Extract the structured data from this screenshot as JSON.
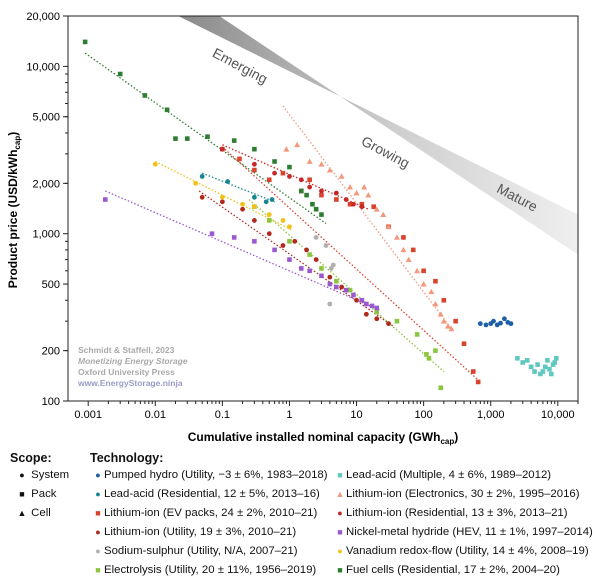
{
  "chart_data": {
    "type": "scatter",
    "xscale": "log",
    "yscale": "log",
    "xlabel": "Cumulative installed nominal capacity (GWh",
    "xlabel_sub": "cap",
    "xlabel_end": ")",
    "ylabel": "Product price (USD/kWh",
    "ylabel_sub": "cap",
    "ylabel_end": ")",
    "xlim": [
      0.0005,
      20000
    ],
    "ylim": [
      100,
      20000
    ],
    "xticks": [
      0.001,
      0.01,
      0.1,
      1,
      10,
      100,
      1000,
      10000
    ],
    "xtick_labels": [
      "0.001",
      "0.01",
      "0.1",
      "1",
      "10",
      "100",
      "1,000",
      "10,000"
    ],
    "yticks": [
      100,
      200,
      500,
      1000,
      2000,
      5000,
      10000,
      20000
    ],
    "ytick_labels": [
      "100",
      "200",
      "500",
      "1,000",
      "2,000",
      "5,000",
      "10,000",
      "20,000"
    ],
    "band_labels": [
      "Emerging",
      "Growing",
      "Mature"
    ],
    "source_lines": [
      "Schmidt & Staffell, 2023",
      "Monetizing Energy Storage",
      "Oxford University Press",
      "www.EnergyStorage.ninja"
    ],
    "series": [
      {
        "name": "Pumped hydro (Utility, −3 ± 6%, 1983–2018)",
        "color": "#1f5fa6",
        "marker": "circle",
        "points": [
          [
            700,
            290
          ],
          [
            850,
            285
          ],
          [
            1000,
            290
          ],
          [
            1100,
            300
          ],
          [
            1250,
            285
          ],
          [
            1400,
            292
          ],
          [
            1600,
            310
          ],
          [
            1800,
            295
          ],
          [
            2000,
            290
          ]
        ]
      },
      {
        "name": "Lead-acid (Residential, 12 ± 5%, 2013–16)",
        "color": "#17858f",
        "marker": "circle",
        "points": [
          [
            0.05,
            2200
          ],
          [
            0.12,
            2050
          ],
          [
            0.3,
            1650
          ],
          [
            0.45,
            1550
          ],
          [
            0.55,
            1600
          ]
        ],
        "trend": [
          [
            0.05,
            2300
          ],
          [
            0.6,
            1550
          ]
        ]
      },
      {
        "name": "Lithium-ion (EV packs, 24 ± 2%, 2010–21)",
        "color": "#d9432e",
        "marker": "square",
        "points": [
          [
            0.1,
            3200
          ],
          [
            0.18,
            2800
          ],
          [
            0.3,
            2400
          ],
          [
            0.5,
            2100
          ],
          [
            0.8,
            2300
          ],
          [
            1.5,
            1800
          ],
          [
            2,
            2100
          ],
          [
            3,
            1700
          ],
          [
            5,
            1600
          ],
          [
            8,
            1500
          ],
          [
            12,
            1500
          ],
          [
            18,
            1450
          ],
          [
            30,
            1100
          ],
          [
            50,
            950
          ],
          [
            70,
            800
          ],
          [
            100,
            600
          ],
          [
            150,
            520
          ],
          [
            200,
            400
          ],
          [
            300,
            300
          ],
          [
            400,
            220
          ],
          [
            550,
            150
          ],
          [
            650,
            130
          ]
        ],
        "trend": [
          [
            0.1,
            3300
          ],
          [
            700,
            130
          ]
        ]
      },
      {
        "name": "Lithium-ion (Utility, 19 ± 3%, 2010–21)",
        "color": "#b02a1e",
        "marker": "circle",
        "points": [
          [
            0.05,
            1650
          ],
          [
            0.1,
            1550
          ],
          [
            0.2,
            1400
          ],
          [
            0.3,
            1200
          ],
          [
            0.5,
            1000
          ],
          [
            0.8,
            850
          ],
          [
            1.2,
            900
          ],
          [
            1.8,
            800
          ],
          [
            2.5,
            700
          ],
          [
            4,
            550
          ],
          [
            6,
            480
          ],
          [
            10,
            400
          ],
          [
            14,
            330
          ],
          [
            20,
            310
          ],
          [
            30,
            290
          ]
        ],
        "trend": [
          [
            0.045,
            1800
          ],
          [
            35,
            280
          ]
        ]
      },
      {
        "name": "Sodium-sulphur (Utility, N/A, 2007–21)",
        "color": "#b0b0b0",
        "marker": "circle",
        "points": [
          [
            2.5,
            950
          ],
          [
            3.5,
            850
          ],
          [
            4.5,
            650
          ],
          [
            4,
            380
          ],
          [
            4.2,
            620
          ]
        ]
      },
      {
        "name": "Electrolysis (Utility, 20 ± 11%, 1956–2019)",
        "color": "#8cc63f",
        "marker": "square",
        "points": [
          [
            0.3,
            1450
          ],
          [
            0.5,
            1200
          ],
          [
            1,
            900
          ],
          [
            2,
            750
          ],
          [
            3,
            620
          ],
          [
            5,
            520
          ],
          [
            8,
            460
          ],
          [
            12,
            400
          ],
          [
            20,
            340
          ],
          [
            40,
            300
          ],
          [
            80,
            250
          ],
          [
            110,
            190
          ],
          [
            120,
            180
          ],
          [
            150,
            200
          ],
          [
            180,
            120
          ]
        ],
        "trend": [
          [
            0.25,
            1600
          ],
          [
            200,
            150
          ]
        ]
      },
      {
        "name": "Fuel cells (Residential, 17 ± 2%, 2004–20)",
        "color": "#2e7d32",
        "marker": "square",
        "points": [
          [
            0.0009,
            14000
          ],
          [
            0.003,
            9000
          ],
          [
            0.007,
            6700
          ],
          [
            0.015,
            5500
          ],
          [
            0.02,
            3700
          ],
          [
            0.03,
            3700
          ],
          [
            0.06,
            3800
          ],
          [
            0.15,
            3600
          ],
          [
            0.3,
            3200
          ],
          [
            0.6,
            2700
          ],
          [
            1,
            2500
          ],
          [
            1.5,
            1800
          ],
          [
            1.8,
            1700
          ],
          [
            2.2,
            1500
          ],
          [
            2.5,
            1400
          ],
          [
            3,
            1300
          ]
        ],
        "trend": [
          [
            0.0009,
            12000
          ],
          [
            3.5,
            1150
          ]
        ]
      },
      {
        "name": "Lead-acid (Multiple, 4 ± 6%, 1989–2012)",
        "color": "#5fc8c0",
        "marker": "square",
        "points": [
          [
            2500,
            180
          ],
          [
            3000,
            170
          ],
          [
            3500,
            175
          ],
          [
            4000,
            160
          ],
          [
            4500,
            150
          ],
          [
            5000,
            165
          ],
          [
            5500,
            145
          ],
          [
            6000,
            150
          ],
          [
            6500,
            160
          ],
          [
            7000,
            175
          ],
          [
            7500,
            155
          ],
          [
            8000,
            145
          ],
          [
            8500,
            165
          ],
          [
            9000,
            170
          ],
          [
            9500,
            180
          ]
        ]
      },
      {
        "name": "Lithium-ion (Electronics, 30 ± 2%, 1995–2016)",
        "color": "#f3987c",
        "marker": "triangle",
        "points": [
          [
            0.9,
            3200
          ],
          [
            1.3,
            3400
          ],
          [
            2,
            2700
          ],
          [
            3,
            2600
          ],
          [
            4,
            2400
          ],
          [
            6,
            2200
          ],
          [
            8,
            1900
          ],
          [
            10,
            1750
          ],
          [
            13,
            1900
          ],
          [
            15,
            1700
          ],
          [
            20,
            1400
          ],
          [
            25,
            1300
          ],
          [
            30,
            1100
          ],
          [
            40,
            950
          ],
          [
            50,
            800
          ],
          [
            60,
            700
          ],
          [
            80,
            600
          ],
          [
            100,
            500
          ],
          [
            130,
            450
          ],
          [
            150,
            380
          ],
          [
            180,
            330
          ],
          [
            200,
            300
          ],
          [
            230,
            280
          ],
          [
            260,
            270
          ]
        ],
        "trend": [
          [
            0.8,
            5800
          ],
          [
            280,
            260
          ]
        ]
      },
      {
        "name": "Lithium-ion (Residential, 13 ± 3%, 2013–21)",
        "color": "#c62828",
        "marker": "circle",
        "points": [
          [
            0.1,
            3200
          ],
          [
            0.3,
            2600
          ],
          [
            0.6,
            2300
          ],
          [
            1,
            2200
          ],
          [
            1.5,
            2100
          ],
          [
            2,
            1900
          ],
          [
            3,
            1800
          ],
          [
            5,
            1750
          ],
          [
            7,
            1600
          ],
          [
            9,
            1500
          ],
          [
            12,
            1450
          ]
        ],
        "trend": [
          [
            0.1,
            3400
          ],
          [
            15,
            1400
          ]
        ]
      },
      {
        "name": "Nickel-metal hydride (HEV, 11 ± 1%, 1997–2014)",
        "color": "#9b59d0",
        "marker": "square",
        "points": [
          [
            0.0018,
            1600
          ],
          [
            0.07,
            1000
          ],
          [
            0.15,
            950
          ],
          [
            0.3,
            900
          ],
          [
            0.6,
            800
          ],
          [
            1,
            700
          ],
          [
            1.5,
            620
          ],
          [
            2,
            600
          ],
          [
            3,
            560
          ],
          [
            4,
            500
          ],
          [
            5,
            480
          ],
          [
            7,
            460
          ],
          [
            9,
            430
          ],
          [
            12,
            400
          ],
          [
            14,
            380
          ],
          [
            17,
            370
          ],
          [
            20,
            360
          ]
        ],
        "trend": [
          [
            0.0018,
            1800
          ],
          [
            22,
            350
          ]
        ]
      },
      {
        "name": "Vanadium redox-flow (Utility, 14 ± 4%, 2008–19)",
        "color": "#f3c11c",
        "marker": "circle",
        "points": [
          [
            0.01,
            2600
          ],
          [
            0.04,
            2000
          ],
          [
            0.1,
            1650
          ],
          [
            0.2,
            1500
          ],
          [
            0.3,
            1450
          ],
          [
            0.5,
            1300
          ],
          [
            0.8,
            1200
          ],
          [
            1,
            1100
          ]
        ],
        "trend": [
          [
            0.01,
            2700
          ],
          [
            1.1,
            1050
          ]
        ]
      }
    ]
  },
  "legend": {
    "scope_title": "Scope:",
    "scope_items": [
      {
        "symbol": "●",
        "label": "System"
      },
      {
        "symbol": "■",
        "label": "Pack"
      },
      {
        "symbol": "▲",
        "label": "Cell"
      }
    ],
    "tech_title": "Technology:",
    "left_col": [
      {
        "symbol": "●",
        "color": "#1f5fa6",
        "label": "Pumped hydro (Utility, −3 ± 6%, 1983–2018)"
      },
      {
        "symbol": "●",
        "color": "#17858f",
        "label": "Lead-acid (Residential, 12 ± 5%, 2013–16)"
      },
      {
        "symbol": "■",
        "color": "#d9432e",
        "label": "Lithium-ion (EV packs, 24 ± 2%, 2010–21)"
      },
      {
        "symbol": "●",
        "color": "#b02a1e",
        "label": "Lithium-ion (Utility, 19 ± 3%, 2010–21)"
      },
      {
        "symbol": "●",
        "color": "#b0b0b0",
        "label": "Sodium-sulphur (Utility, N/A, 2007–21)"
      },
      {
        "symbol": "■",
        "color": "#8cc63f",
        "label": "Electrolysis (Utility, 20 ± 11%, 1956–2019)"
      }
    ],
    "right_col": [
      {
        "symbol": "■",
        "color": "#5fc8c0",
        "label": "Lead-acid (Multiple, 4 ± 6%, 1989–2012)"
      },
      {
        "symbol": "▲",
        "color": "#f3987c",
        "label": "Lithium-ion (Electronics, 30 ± 2%, 1995–2016)"
      },
      {
        "symbol": "●",
        "color": "#c62828",
        "label": "Lithium-ion (Residential, 13 ± 3%, 2013–21)"
      },
      {
        "symbol": "■",
        "color": "#9b59d0",
        "label": "Nickel-metal hydride (HEV, 11 ± 1%, 1997–2014)"
      },
      {
        "symbol": "●",
        "color": "#f3c11c",
        "label": "Vanadium redox-flow (Utility, 14 ± 4%, 2008–19)"
      },
      {
        "symbol": "■",
        "color": "#2e7d32",
        "label": "Fuel cells (Residential, 17 ± 2%, 2004–20)"
      }
    ]
  }
}
